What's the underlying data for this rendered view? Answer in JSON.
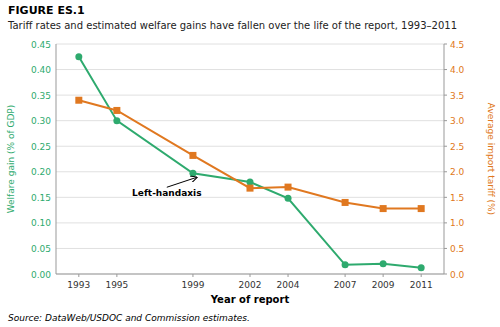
{
  "chart_data": {
    "type": "line",
    "title": "FIGURE ES.1",
    "subtitle": "Tariff rates and estimated welfare gains have fallen over the life of the report, 1993–2011",
    "source": "Source: DataWeb/USDOC and Commission estimates.",
    "xlabel": "Year of report",
    "ylabel": "Welfare gain (% of GDP)",
    "y2label": "Average import tariff (%)",
    "x": [
      1993,
      1995,
      1999,
      2002,
      2004,
      2007,
      2009,
      2011
    ],
    "series": [
      {
        "color": "#2EAA6E",
        "marker": "circle",
        "values": [
          0.425,
          0.3,
          0.197,
          0.18,
          0.148,
          0.018,
          0.02,
          0.012
        ]
      },
      {
        "color": "#E07820",
        "marker": "square",
        "axis": "y2",
        "values": [
          3.4,
          3.2,
          2.32,
          1.68,
          1.7,
          1.4,
          1.28,
          1.28
        ]
      }
    ],
    "xlim": [
      1991.8,
      2012.2
    ],
    "xticks": [
      1993,
      1995,
      1999,
      2002,
      2004,
      2007,
      2009,
      2011
    ],
    "ylim": [
      0.0,
      0.45
    ],
    "yticks": [
      {
        "value": 0.0,
        "label": "0.00"
      },
      {
        "value": 0.05,
        "label": "0.05"
      },
      {
        "value": 0.1,
        "label": "0.10"
      },
      {
        "value": 0.15,
        "label": "0.15"
      },
      {
        "value": 0.2,
        "label": "0.20"
      },
      {
        "value": 0.25,
        "label": "0.25"
      },
      {
        "value": 0.3,
        "label": "0.30"
      },
      {
        "value": 0.35,
        "label": "0.35"
      },
      {
        "value": 0.4,
        "label": "0.40"
      },
      {
        "value": 0.45,
        "label": "0.45"
      }
    ],
    "y2lim": [
      0.0,
      4.5
    ],
    "y2ticks": [
      {
        "value": 0.0,
        "label": "0.0"
      },
      {
        "value": 0.5,
        "label": "0.5"
      },
      {
        "value": 1.0,
        "label": "1.0"
      },
      {
        "value": 1.5,
        "label": "1.5"
      },
      {
        "value": 2.0,
        "label": "2.0"
      },
      {
        "value": 2.5,
        "label": "2.5"
      },
      {
        "value": 3.0,
        "label": "3.0"
      },
      {
        "value": 3.5,
        "label": "3.5"
      },
      {
        "value": 4.0,
        "label": "4.0"
      },
      {
        "value": 4.5,
        "label": "4.5"
      }
    ],
    "grid": true,
    "annotations": [
      {
        "text": "Left-handaxis",
        "x": 1999.2,
        "y": 0.197,
        "text_x": 1995.8,
        "text_y": 0.157
      }
    ]
  }
}
